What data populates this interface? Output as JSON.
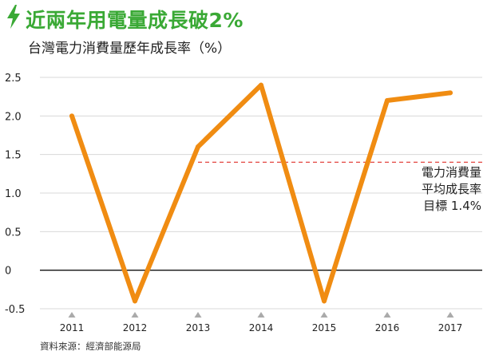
{
  "header": {
    "title": "近兩年用電量成長破2%",
    "subtitle": "台灣電力消費量歷年成長率（%）",
    "icon": "lightning-bolt-icon"
  },
  "annotation": {
    "lines": [
      "電力消費量",
      "平均成長率",
      "目標 1.4%"
    ]
  },
  "source": "資料來源：經濟部能源局",
  "colors": {
    "title": "#3aa935",
    "line": "#f08c12",
    "target_line": "#e0302a",
    "axis": "#111111",
    "grid": "#d8d8d8",
    "marker": "#aaaaaa"
  },
  "chart_data": {
    "type": "line",
    "categories": [
      "2011",
      "2012",
      "2013",
      "2014",
      "2015",
      "2016",
      "2017"
    ],
    "series": [
      {
        "values": [
          2.0,
          -0.4,
          1.6,
          2.4,
          -0.4,
          2.2,
          2.3
        ]
      }
    ],
    "yticks": [
      "2.5",
      "2.0",
      "1.5",
      "1.0",
      "0.5",
      "0",
      "-0.5"
    ],
    "ylim": [
      -0.5,
      2.5
    ],
    "reference_line": {
      "value": 1.4,
      "style": "dashed",
      "start_category": "2013"
    },
    "grid": true
  }
}
